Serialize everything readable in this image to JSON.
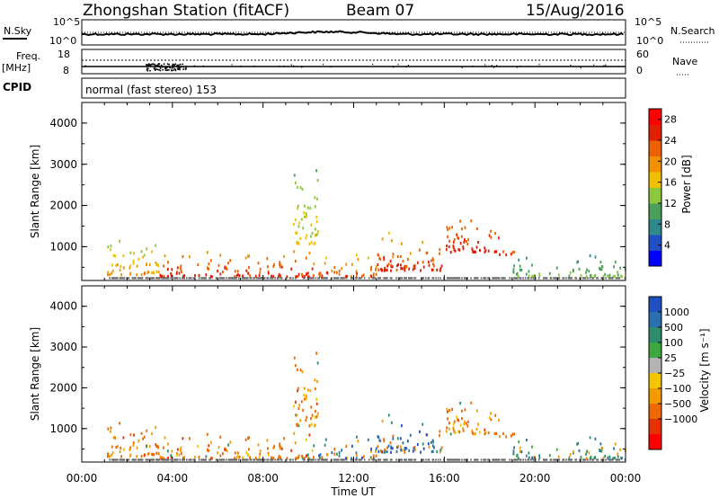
{
  "header": {
    "title": "Zhongshan Station (fitACF)",
    "beam": "Beam 07",
    "date": "15/Aug/2016"
  },
  "top_panels": {
    "nsky_label": "N.Sky",
    "nsearch_label": "N.Search",
    "noise_ticks": [
      "10^5",
      "10^0"
    ],
    "freq_label_line1": "Freq.",
    "freq_label_line2": "[MHz]",
    "freq_ticks": [
      "18",
      "8"
    ],
    "nave_label": "Nave",
    "nave_ticks": [
      "60",
      "0"
    ],
    "cpid_label": "CPID",
    "cpid_text": "normal (fast stereo) 153"
  },
  "chart_data": [
    {
      "type": "heatmap",
      "title": "",
      "quantity": "Power",
      "xlabel": "",
      "ylabel": "Slant Range [km]",
      "xlim": [
        "00:00",
        "24:00"
      ],
      "ylim": [
        180,
        4500
      ],
      "x_ticks": [
        "00:00",
        "04:00",
        "08:00",
        "12:00",
        "16:00",
        "20:00",
        "00:00"
      ],
      "y_ticks": [
        1000,
        2000,
        3000,
        4000
      ],
      "colorbar": {
        "label": "Power [dB]",
        "ticks": [
          4,
          8,
          12,
          16,
          20,
          24,
          28
        ],
        "range": [
          0,
          30
        ],
        "colors": [
          "#0000ff",
          "#2050c8",
          "#2e8a8a",
          "#4aa05a",
          "#8cc83c",
          "#f0c000",
          "#f29000",
          "#ee6000",
          "#e02000",
          "#ff0000"
        ]
      },
      "echo_regions": [
        {
          "t": [
            1.1,
            3.4
          ],
          "r": [
            350,
            1350
          ],
          "values": [
            8,
            22
          ]
        },
        {
          "t": [
            3.4,
            10.2
          ],
          "r": [
            300,
            1000
          ],
          "values": [
            14,
            28
          ]
        },
        {
          "t": [
            10.2,
            13.0
          ],
          "r": [
            300,
            900
          ],
          "values": [
            12,
            26
          ]
        },
        {
          "t": [
            13.0,
            15.9
          ],
          "r": [
            450,
            1500
          ],
          "values": [
            12,
            28
          ]
        },
        {
          "t": [
            16.0,
            18.4
          ],
          "r": [
            900,
            1950
          ],
          "values": [
            16,
            28
          ]
        },
        {
          "t": [
            18.4,
            19.2
          ],
          "r": [
            750,
            1100
          ],
          "values": [
            18,
            28
          ]
        },
        {
          "t": [
            19.0,
            24.0
          ],
          "r": [
            300,
            850
          ],
          "values": [
            4,
            14
          ]
        },
        {
          "t": [
            9.3,
            10.4
          ],
          "r": [
            1100,
            3100
          ],
          "values": [
            8,
            18
          ]
        }
      ]
    },
    {
      "type": "heatmap",
      "title": "",
      "quantity": "Velocity",
      "xlabel": "Time UT",
      "ylabel": "Slant Range [km]",
      "xlim": [
        "00:00",
        "24:00"
      ],
      "ylim": [
        180,
        4500
      ],
      "x_ticks": [
        "00:00",
        "04:00",
        "08:00",
        "12:00",
        "16:00",
        "20:00",
        "00:00"
      ],
      "y_ticks": [
        1000,
        2000,
        3000,
        4000
      ],
      "colorbar": {
        "label": "Velocity [m s⁻¹]",
        "ticks": [
          "1000",
          "500",
          "100",
          "25",
          "−25",
          "−100",
          "−500",
          "−1000"
        ],
        "colors": [
          "#1f4fc0",
          "#2a70b0",
          "#2e8c6e",
          "#3ea840",
          "#b4b4b4",
          "#f4c400",
          "#f29a00",
          "#ee6800",
          "#e63200",
          "#ff0000"
        ]
      },
      "echo_regions": [
        {
          "t": [
            1.1,
            3.4
          ],
          "r": [
            350,
            1350
          ],
          "kind": "neg"
        },
        {
          "t": [
            3.4,
            10.2
          ],
          "r": [
            300,
            1000
          ],
          "kind": "neg"
        },
        {
          "t": [
            10.2,
            13.0
          ],
          "r": [
            300,
            900
          ],
          "kind": "mix"
        },
        {
          "t": [
            13.0,
            15.9
          ],
          "r": [
            450,
            1500
          ],
          "kind": "mix"
        },
        {
          "t": [
            16.0,
            18.4
          ],
          "r": [
            900,
            1950
          ],
          "kind": "neg"
        },
        {
          "t": [
            18.4,
            19.2
          ],
          "r": [
            750,
            1100
          ],
          "kind": "neg"
        },
        {
          "t": [
            19.0,
            24.0
          ],
          "r": [
            300,
            850
          ],
          "kind": "pos"
        },
        {
          "t": [
            9.3,
            10.4
          ],
          "r": [
            1100,
            3100
          ],
          "kind": "neg"
        }
      ]
    }
  ]
}
